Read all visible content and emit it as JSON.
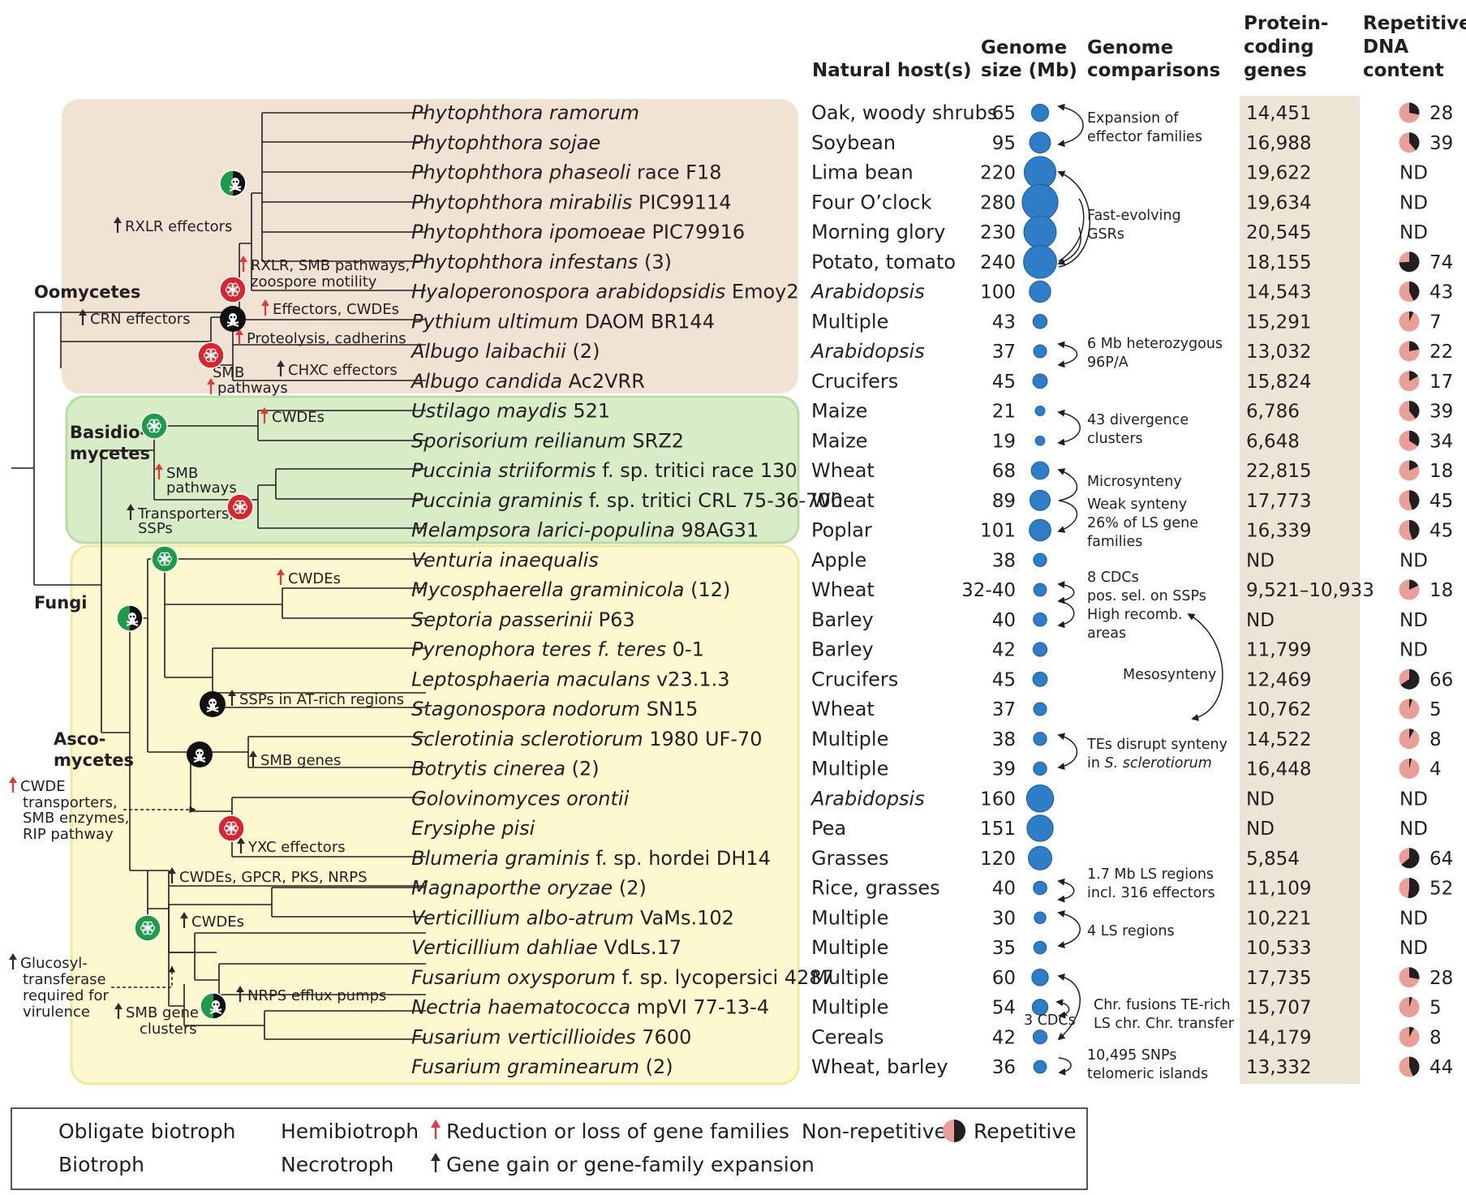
{
  "headers": {
    "host": "Natural host(s)",
    "genome_size": [
      "Genome",
      "size (Mb)"
    ],
    "comparisons": [
      "Genome",
      "comparisons"
    ],
    "genes": [
      "Protein-",
      "coding",
      "genes"
    ],
    "repeat": [
      "Repetitive",
      "DNA",
      "content"
    ]
  },
  "groups": {
    "oomycetes": "Oomycetes",
    "basidio": [
      "Basidio-",
      "mycetes"
    ],
    "fungi": "Fungi",
    "asco": [
      "Asco-",
      "mycetes"
    ]
  },
  "colors": {
    "oomycete_bg": "#f1e3d3",
    "basidio_bg": "#d8ecc8",
    "asco_bg": "#fdf8cf",
    "genes_col_bg": "#ece5d6",
    "bubble": "#2f7dc7",
    "pie_light": "#e99e98",
    "pie_dark": "#231f20",
    "obligate": "#d7262e",
    "biotroph": "#1f9a48",
    "red_arrow": "#e03a3e",
    "black_arrow": "#2b2b2b"
  },
  "species": [
    {
      "name": "Phytophthora ramorum",
      "suffix": "",
      "host": "Oak, woody shrubs",
      "host_italic": false,
      "size": "65",
      "size_mb": 65,
      "genes": "14,451",
      "repeat": "28",
      "repeat_pct": 28
    },
    {
      "name": "Phytophthora sojae",
      "suffix": "",
      "host": "Soybean",
      "host_italic": false,
      "size": "95",
      "size_mb": 95,
      "genes": "16,988",
      "repeat": "39",
      "repeat_pct": 39
    },
    {
      "name": "Phytophthora phaseoli",
      "suffix": " race F18",
      "host": "Lima bean",
      "host_italic": false,
      "size": "220",
      "size_mb": 220,
      "genes": "19,622",
      "repeat": "ND",
      "repeat_pct": null
    },
    {
      "name": "Phytophthora mirabilis",
      "suffix": " PIC99114",
      "host": "Four O’clock",
      "host_italic": false,
      "size": "280",
      "size_mb": 280,
      "genes": "19,634",
      "repeat": "ND",
      "repeat_pct": null
    },
    {
      "name": "Phytophthora ipomoeae",
      "suffix": " PIC79916",
      "host": "Morning glory",
      "host_italic": false,
      "size": "230",
      "size_mb": 230,
      "genes": "20,545",
      "repeat": "ND",
      "repeat_pct": null
    },
    {
      "name": "Phytophthora infestans",
      "suffix": " (3)",
      "host": "Potato, tomato",
      "host_italic": false,
      "size": "240",
      "size_mb": 240,
      "genes": "18,155",
      "repeat": "74",
      "repeat_pct": 74
    },
    {
      "name": "Hyaloperonospora arabidopsidis",
      "suffix": " Emoy2",
      "host": "Arabidopsis",
      "host_italic": true,
      "size": "100",
      "size_mb": 100,
      "genes": "14,543",
      "repeat": "43",
      "repeat_pct": 43
    },
    {
      "name": "Pythium ultimum",
      "suffix": " DAOM BR144",
      "host": "Multiple",
      "host_italic": false,
      "size": "43",
      "size_mb": 43,
      "genes": "15,291",
      "repeat": "7",
      "repeat_pct": 7
    },
    {
      "name": "Albugo laibachii",
      "suffix": " (2)",
      "host": "Arabidopsis",
      "host_italic": true,
      "size": "37",
      "size_mb": 37,
      "genes": "13,032",
      "repeat": "22",
      "repeat_pct": 22
    },
    {
      "name": "Albugo candida",
      "suffix": " Ac2VRR",
      "host": "Crucifers",
      "host_italic": false,
      "size": "45",
      "size_mb": 45,
      "genes": "15,824",
      "repeat": "17",
      "repeat_pct": 17
    },
    {
      "name": "Ustilago maydis",
      "suffix": " 521",
      "host": "Maize",
      "host_italic": false,
      "size": "21",
      "size_mb": 21,
      "genes": "6,786",
      "repeat": "39",
      "repeat_pct": 39
    },
    {
      "name": "Sporisorium reilianum",
      "suffix": " SRZ2",
      "host": "Maize",
      "host_italic": false,
      "size": "19",
      "size_mb": 19,
      "genes": "6,648",
      "repeat": "34",
      "repeat_pct": 34
    },
    {
      "name": "Puccinia striiformis",
      "suffix": " f. sp. tritici race 130",
      "host": "Wheat",
      "host_italic": false,
      "size": "68",
      "size_mb": 68,
      "genes": "22,815",
      "repeat": "18",
      "repeat_pct": 18
    },
    {
      "name": "Puccinia graminis",
      "suffix": " f. sp. tritici CRL 75-36-700",
      "host": "Wheat",
      "host_italic": false,
      "size": "89",
      "size_mb": 89,
      "genes": "17,773",
      "repeat": "45",
      "repeat_pct": 45
    },
    {
      "name": "Melampsora larici-populina",
      "suffix": " 98AG31",
      "host": "Poplar",
      "host_italic": false,
      "size": "101",
      "size_mb": 101,
      "genes": "16,339",
      "repeat": "45",
      "repeat_pct": 45
    },
    {
      "name": "Venturia inaequalis",
      "suffix": "",
      "host": "Apple",
      "host_italic": false,
      "size": "38",
      "size_mb": 38,
      "genes": "ND",
      "repeat": "ND",
      "repeat_pct": null
    },
    {
      "name": "Mycosphaerella graminicola",
      "suffix": " (12)",
      "host": "Wheat",
      "host_italic": false,
      "size": "32-40",
      "size_mb": 36,
      "genes": "9,521–10,933",
      "repeat": "18",
      "repeat_pct": 18
    },
    {
      "name": "Septoria passerinii",
      "suffix": " P63",
      "host": "Barley",
      "host_italic": false,
      "size": "40",
      "size_mb": 40,
      "genes": "ND",
      "repeat": "ND",
      "repeat_pct": null
    },
    {
      "name": "Pyrenophora teres f. teres",
      "suffix": " 0-1",
      "host": "Barley",
      "host_italic": false,
      "size": "42",
      "size_mb": 42,
      "genes": "11,799",
      "repeat": "ND",
      "repeat_pct": null
    },
    {
      "name": "Leptosphaeria maculans",
      "suffix": " v23.1.3",
      "host": "Crucifers",
      "host_italic": false,
      "size": "45",
      "size_mb": 45,
      "genes": "12,469",
      "repeat": "66",
      "repeat_pct": 66
    },
    {
      "name": "Stagonospora nodorum",
      "suffix": " SN15",
      "host": "Wheat",
      "host_italic": false,
      "size": "37",
      "size_mb": 37,
      "genes": "10,762",
      "repeat": "5",
      "repeat_pct": 5
    },
    {
      "name": "Sclerotinia sclerotiorum",
      "suffix": " 1980 UF-70",
      "host": "Multiple",
      "host_italic": false,
      "size": "38",
      "size_mb": 38,
      "genes": "14,522",
      "repeat": "8",
      "repeat_pct": 8
    },
    {
      "name": "Botrytis cinerea",
      "suffix": " (2)",
      "host": "Multiple",
      "host_italic": false,
      "size": "39",
      "size_mb": 39,
      "genes": "16,448",
      "repeat": "4",
      "repeat_pct": 4
    },
    {
      "name": "Golovinomyces orontii",
      "suffix": "",
      "host": "Arabidopsis",
      "host_italic": true,
      "size": "160",
      "size_mb": 160,
      "genes": "ND",
      "repeat": "ND",
      "repeat_pct": null
    },
    {
      "name": "Erysiphe pisi",
      "suffix": "",
      "host": "Pea",
      "host_italic": false,
      "size": "151",
      "size_mb": 151,
      "genes": "ND",
      "repeat": "ND",
      "repeat_pct": null
    },
    {
      "name": "Blumeria graminis",
      "suffix": " f. sp. hordei DH14",
      "host": "Grasses",
      "host_italic": false,
      "size": "120",
      "size_mb": 120,
      "genes": "5,854",
      "repeat": "64",
      "repeat_pct": 64
    },
    {
      "name": "Magnaporthe oryzae",
      "suffix": " (2)",
      "host": "Rice, grasses",
      "host_italic": false,
      "size": "40",
      "size_mb": 40,
      "genes": "11,109",
      "repeat": "52",
      "repeat_pct": 52
    },
    {
      "name": "Verticillium albo-atrum",
      "suffix": " VaMs.102",
      "host": "Multiple",
      "host_italic": false,
      "size": "30",
      "size_mb": 30,
      "genes": "10,221",
      "repeat": "ND",
      "repeat_pct": null
    },
    {
      "name": "Verticillium dahliae",
      "suffix": " VdLs.17",
      "host": "Multiple",
      "host_italic": false,
      "size": "35",
      "size_mb": 35,
      "genes": "10,533",
      "repeat": "ND",
      "repeat_pct": null
    },
    {
      "name": "Fusarium oxysporum",
      "suffix": " f. sp. lycopersici 4287",
      "host": "Multiple",
      "host_italic": false,
      "size": "60",
      "size_mb": 60,
      "genes": "17,735",
      "repeat": "28",
      "repeat_pct": 28
    },
    {
      "name": "Nectria haematococca",
      "suffix": " mpVI 77-13-4",
      "host": "Multiple",
      "host_italic": false,
      "size": "54",
      "size_mb": 54,
      "genes": "15,707",
      "repeat": "5",
      "repeat_pct": 5
    },
    {
      "name": "Fusarium verticillioides",
      "suffix": " 7600",
      "host": "Cereals",
      "host_italic": false,
      "size": "42",
      "size_mb": 42,
      "genes": "14,179",
      "repeat": "8",
      "repeat_pct": 8
    },
    {
      "name": "Fusarium graminearum",
      "suffix": " (2)",
      "host": "Wheat, barley",
      "host_italic": false,
      "size": "36",
      "size_mb": 36,
      "genes": "13,332",
      "repeat": "44",
      "repeat_pct": 44
    }
  ],
  "comparisons": {
    "c1": [
      "Expansion of",
      "effector families"
    ],
    "c2": [
      "Fast-evolving",
      "GSRs"
    ],
    "c3": [
      "6 Mb heterozygous",
      "96P/A"
    ],
    "c4": [
      "43 divergence",
      "clusters"
    ],
    "c5": "Microsynteny",
    "c6": [
      "Weak synteny",
      "26% of LS gene",
      "families"
    ],
    "c7": [
      "8 CDCs",
      "pos. sel. on SSPs",
      "High recomb.",
      "areas"
    ],
    "c8": "Mesosynteny",
    "c9": [
      "TEs disrupt synteny",
      "in ",
      "S. sclerotiorum"
    ],
    "c10": [
      "1.7 Mb LS regions",
      "incl. 316 effectors"
    ],
    "c11": "4 LS regions",
    "c12": "3 CDCs",
    "c13": [
      "Chr. fusions TE-rich",
      "LS chr. Chr. transfer"
    ],
    "c14": [
      "10,495 SNPs",
      "telomeric islands"
    ]
  },
  "tree_annotations": {
    "rxlr": "RXLR effectors",
    "crn": "CRN effectors",
    "rxlr_smb": [
      "RXLR, SMB pathways,",
      "zoospore motility"
    ],
    "effectors": "Effectors, CWDEs",
    "proteolysis": "Proteolysis, cadherins",
    "chxc": "CHXC effectors",
    "smb_path": [
      "SMB",
      "pathways"
    ],
    "cwdes1": "CWDEs",
    "smb_path2": [
      "SMB",
      "pathways"
    ],
    "transporters": [
      "Transporters,",
      "SSPs"
    ],
    "cwdes2": "CWDEs",
    "ssps_at": "SSPs in AT-rich regions",
    "smb_genes": "SMB genes",
    "cwde_side": [
      "CWDE",
      "transporters,",
      "SMB enzymes,",
      "RIP pathway"
    ],
    "yxc": "YXC effectors",
    "cwdes_gpcr": "CWDEs, GPCR, PKS, NRPS",
    "cwdes3": "CWDEs",
    "glucosyl": [
      "Glucosyl-",
      "transferase",
      "required for",
      "virulence"
    ],
    "smb_gene_clusters": [
      "SMB gene",
      "clusters"
    ],
    "nrps": "NRPS efflux pumps"
  },
  "legend": {
    "obligate": "Obligate biotroph",
    "biotroph": "Biotroph",
    "hemibiotroph": "Hemibiotroph",
    "necrotroph": "Necrotroph",
    "reduction": "Reduction or loss of gene families",
    "gain": "Gene gain or gene-family expansion",
    "nonrep": "Non-repetitive",
    "rep": "Repetitive"
  }
}
